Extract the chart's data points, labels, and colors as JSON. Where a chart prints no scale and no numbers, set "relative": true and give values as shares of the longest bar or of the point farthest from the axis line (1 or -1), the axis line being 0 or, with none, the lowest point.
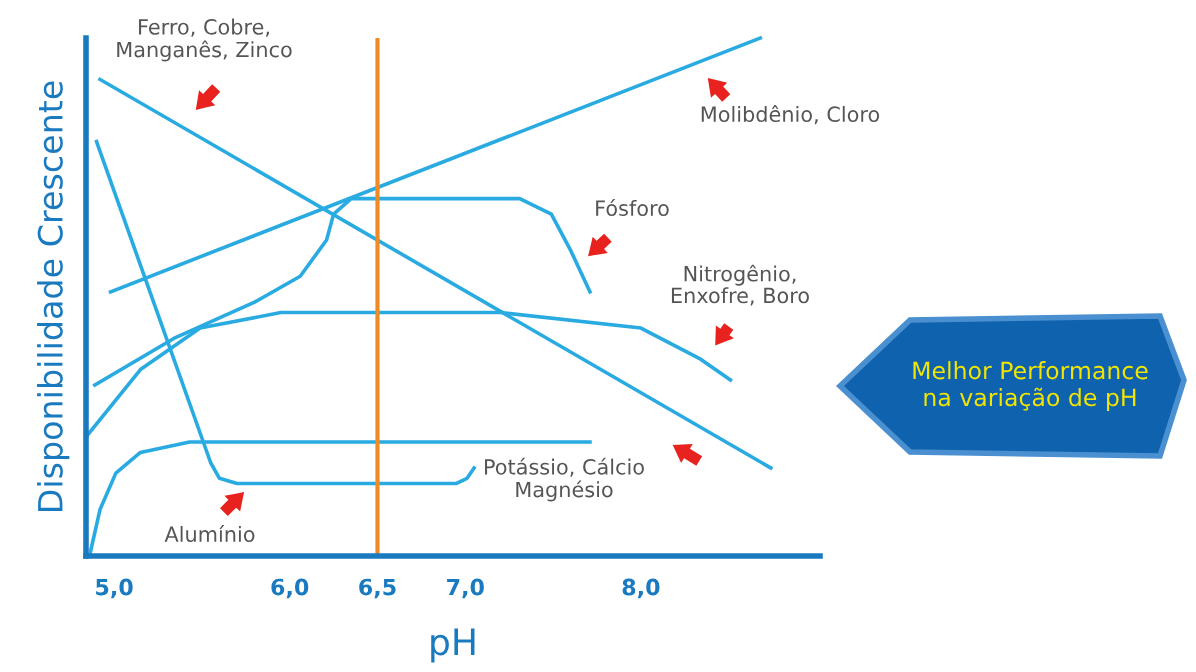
{
  "chart_data": {
    "type": "line",
    "relative": true,
    "xlabel": "pH",
    "ylabel": "Disponibilidade Crescente",
    "xlim": [
      4.84,
      9.02
    ],
    "xticks": [
      {
        "value": 5,
        "label": "5,0"
      },
      {
        "value": 6,
        "label": "6,0"
      },
      {
        "value": 6.5,
        "label": "6,5"
      },
      {
        "value": 7,
        "label": "7,0"
      },
      {
        "value": 8,
        "label": "8,0"
      }
    ],
    "grid": false,
    "legend": false,
    "marker": "none",
    "line_style": "solid",
    "ref_lines": [
      {
        "axis": "x",
        "value": 6.5,
        "color": "#f08a24"
      }
    ],
    "annotations": [
      "Melhor Performance\nna variação de pH"
    ],
    "series": [
      {
        "name": "Ferro, Cobre,\nManganês, Zinco",
        "color": "#29abe2",
        "x": [
          4.92,
          8.74
        ],
        "values": [
          0.92,
          0.17
        ]
      },
      {
        "name": "Molibdênio, Cloro",
        "color": "#29abe2",
        "x": [
          4.98,
          8.68
        ],
        "values": [
          0.51,
          1.0
        ]
      },
      {
        "name": "Fósforo",
        "color": "#29abe2",
        "x": [
          4.89,
          5.34,
          5.8,
          6.06,
          6.21,
          6.25,
          6.35,
          6.63,
          7.31,
          7.49,
          7.6,
          7.71
        ],
        "values": [
          0.33,
          0.42,
          0.49,
          0.54,
          0.61,
          0.66,
          0.69,
          0.69,
          0.69,
          0.66,
          0.59,
          0.51
        ]
      },
      {
        "name": "Nitrogênio,\nEnxofre, Boro",
        "color": "#29abe2",
        "x": [
          4.84,
          5.15,
          5.49,
          5.95,
          7.2,
          8.0,
          8.34,
          8.51
        ],
        "values": [
          0.23,
          0.36,
          0.44,
          0.47,
          0.47,
          0.44,
          0.38,
          0.34
        ]
      },
      {
        "name": "Potássio, Cálcio\nMagnésio",
        "color": "#29abe2",
        "x": [
          4.86,
          4.92,
          5.01,
          5.15,
          5.43,
          7.71
        ],
        "values": [
          0.0,
          0.09,
          0.16,
          0.2,
          0.22,
          0.22
        ]
      },
      {
        "name": "Alumínio",
        "color": "#29abe2",
        "x": [
          4.9,
          5.55,
          5.6,
          5.7,
          6.95,
          7.01,
          7.05
        ],
        "values": [
          0.8,
          0.18,
          0.15,
          0.14,
          0.14,
          0.15,
          0.17
        ]
      }
    ]
  }
}
